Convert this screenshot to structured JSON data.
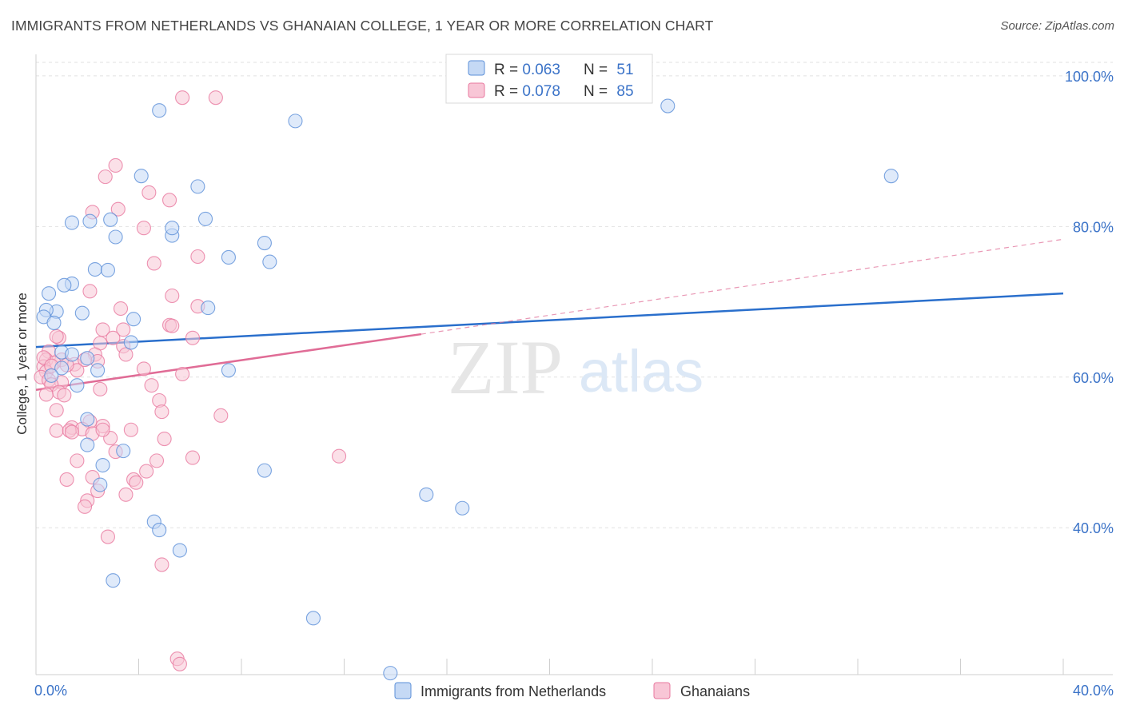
{
  "title": "IMMIGRANTS FROM NETHERLANDS VS GHANAIAN COLLEGE, 1 YEAR OR MORE CORRELATION CHART",
  "source": "Source: ZipAtlas.com",
  "watermark": {
    "zip": "ZIP",
    "atlas": "atlas"
  },
  "colors": {
    "blue": "#5b8fd8",
    "blue_fill": "#c5d9f5",
    "pink": "#e8789f",
    "pink_fill": "#f8c6d6",
    "blue_line": "#2a6fcc",
    "pink_line": "#e06c96",
    "axis_text": "#3b73c8"
  },
  "legend_top": {
    "rows": [
      {
        "r_label": "R = ",
        "r_value": "0.063",
        "n_label": "N = ",
        "n_value": "51"
      },
      {
        "r_label": "R = ",
        "r_value": "0.078",
        "n_label": "N = ",
        "n_value": "85"
      }
    ]
  },
  "chart_data": {
    "type": "scatter",
    "title": "IMMIGRANTS FROM NETHERLANDS VS GHANAIAN COLLEGE, 1 YEAR OR MORE CORRELATION CHART",
    "xlabel": "",
    "ylabel": "College, 1 year or more",
    "xlim": [
      0,
      40
    ],
    "ylim": [
      20.5,
      102
    ],
    "x_tick_labels": [
      "0.0%",
      "40.0%"
    ],
    "y_tick_labels": [
      "100.0%",
      "80.0%",
      "60.0%",
      "40.0%"
    ],
    "y_ticks": [
      100,
      80,
      60,
      40
    ],
    "grid": true,
    "series": [
      {
        "name": "Immigrants from Netherlands",
        "R": 0.063,
        "N": 51,
        "trend": {
          "x": [
            0,
            40
          ],
          "y": [
            64.0,
            71.1
          ],
          "dashed": false
        },
        "points": [
          [
            4.8,
            95.4
          ],
          [
            10.1,
            94.0
          ],
          [
            24.6,
            96.0
          ],
          [
            33.3,
            86.7
          ],
          [
            4.1,
            86.7
          ],
          [
            6.3,
            85.3
          ],
          [
            1.4,
            80.5
          ],
          [
            2.1,
            80.7
          ],
          [
            2.9,
            80.9
          ],
          [
            6.6,
            81.0
          ],
          [
            3.1,
            78.6
          ],
          [
            5.3,
            78.8
          ],
          [
            5.3,
            79.8
          ],
          [
            8.9,
            77.8
          ],
          [
            7.5,
            75.9
          ],
          [
            9.1,
            75.3
          ],
          [
            2.3,
            74.3
          ],
          [
            2.8,
            74.2
          ],
          [
            1.4,
            72.4
          ],
          [
            1.1,
            72.2
          ],
          [
            0.5,
            71.1
          ],
          [
            0.8,
            68.7
          ],
          [
            0.4,
            68.9
          ],
          [
            1.8,
            68.5
          ],
          [
            6.7,
            69.2
          ],
          [
            0.3,
            68.0
          ],
          [
            3.8,
            67.7
          ],
          [
            0.7,
            67.2
          ],
          [
            3.7,
            64.6
          ],
          [
            1.0,
            63.3
          ],
          [
            1.4,
            63.0
          ],
          [
            2.0,
            62.5
          ],
          [
            1.0,
            61.2
          ],
          [
            2.4,
            60.9
          ],
          [
            7.5,
            60.9
          ],
          [
            1.6,
            58.9
          ],
          [
            2.0,
            54.4
          ],
          [
            2.0,
            51.0
          ],
          [
            3.4,
            50.2
          ],
          [
            2.6,
            48.3
          ],
          [
            8.9,
            47.6
          ],
          [
            2.5,
            45.7
          ],
          [
            15.2,
            44.4
          ],
          [
            16.6,
            42.6
          ],
          [
            4.6,
            40.8
          ],
          [
            4.8,
            39.7
          ],
          [
            5.6,
            37.0
          ],
          [
            3.0,
            33.0
          ],
          [
            10.8,
            28.0
          ],
          [
            13.8,
            20.7
          ],
          [
            0.6,
            60.2
          ]
        ]
      },
      {
        "name": "Ghanaians",
        "R": 0.078,
        "N": 85,
        "trend": {
          "x": [
            0,
            15
          ],
          "y": [
            58.3,
            65.7
          ],
          "dashed": false,
          "extension": {
            "x": [
              15,
              40
            ],
            "y": [
              65.7,
              78.3
            ],
            "dashed": true
          }
        },
        "points": [
          [
            5.7,
            97.1
          ],
          [
            7.0,
            97.1
          ],
          [
            3.1,
            88.1
          ],
          [
            2.7,
            86.6
          ],
          [
            4.4,
            84.5
          ],
          [
            5.2,
            83.5
          ],
          [
            3.2,
            82.3
          ],
          [
            2.2,
            81.9
          ],
          [
            4.2,
            79.8
          ],
          [
            6.3,
            76.0
          ],
          [
            4.6,
            75.1
          ],
          [
            2.1,
            71.4
          ],
          [
            5.3,
            70.8
          ],
          [
            6.3,
            69.4
          ],
          [
            3.3,
            69.1
          ],
          [
            5.2,
            66.9
          ],
          [
            5.3,
            66.8
          ],
          [
            2.6,
            66.3
          ],
          [
            3.4,
            66.3
          ],
          [
            0.9,
            65.2
          ],
          [
            0.8,
            65.4
          ],
          [
            3.0,
            65.2
          ],
          [
            6.1,
            65.2
          ],
          [
            2.5,
            64.5
          ],
          [
            3.4,
            64.1
          ],
          [
            0.5,
            63.4
          ],
          [
            3.5,
            63.0
          ],
          [
            2.3,
            63.0
          ],
          [
            0.4,
            62.3
          ],
          [
            1.0,
            62.3
          ],
          [
            2.4,
            62.1
          ],
          [
            0.7,
            61.9
          ],
          [
            1.5,
            61.7
          ],
          [
            0.3,
            61.4
          ],
          [
            4.2,
            61.1
          ],
          [
            1.6,
            60.9
          ],
          [
            0.4,
            60.7
          ],
          [
            5.7,
            60.4
          ],
          [
            0.2,
            60.0
          ],
          [
            0.5,
            59.6
          ],
          [
            1.0,
            59.3
          ],
          [
            0.6,
            59.0
          ],
          [
            4.5,
            58.9
          ],
          [
            2.5,
            58.4
          ],
          [
            0.9,
            58.0
          ],
          [
            1.1,
            57.6
          ],
          [
            0.4,
            57.7
          ],
          [
            4.8,
            56.9
          ],
          [
            4.9,
            55.4
          ],
          [
            0.8,
            55.6
          ],
          [
            7.2,
            54.9
          ],
          [
            2.1,
            54.1
          ],
          [
            1.4,
            53.3
          ],
          [
            1.8,
            53.1
          ],
          [
            2.6,
            53.5
          ],
          [
            3.7,
            53.0
          ],
          [
            0.8,
            52.9
          ],
          [
            2.2,
            52.5
          ],
          [
            1.3,
            52.9
          ],
          [
            1.4,
            52.7
          ],
          [
            2.9,
            51.9
          ],
          [
            5.0,
            51.8
          ],
          [
            3.1,
            50.1
          ],
          [
            6.1,
            49.3
          ],
          [
            11.8,
            49.5
          ],
          [
            1.6,
            48.9
          ],
          [
            4.7,
            48.9
          ],
          [
            4.3,
            47.5
          ],
          [
            2.2,
            46.7
          ],
          [
            3.8,
            46.4
          ],
          [
            3.9,
            46.0
          ],
          [
            1.2,
            46.4
          ],
          [
            2.4,
            44.9
          ],
          [
            3.5,
            44.4
          ],
          [
            2.0,
            43.6
          ],
          [
            1.9,
            42.8
          ],
          [
            2.8,
            38.8
          ],
          [
            4.9,
            35.1
          ],
          [
            5.5,
            22.6
          ],
          [
            5.6,
            21.9
          ],
          [
            0.3,
            62.6
          ],
          [
            1.2,
            61.6
          ],
          [
            2.6,
            53.0
          ],
          [
            0.6,
            61.5
          ],
          [
            1.9,
            62.3
          ]
        ]
      }
    ],
    "legend": [
      "Immigrants from Netherlands",
      "Ghanaians"
    ]
  },
  "bottom_legend": {
    "items": [
      "Immigrants from Netherlands",
      "Ghanaians"
    ]
  }
}
